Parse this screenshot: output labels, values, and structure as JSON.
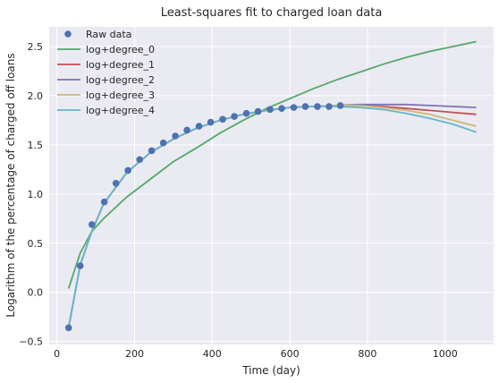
{
  "chart_data": {
    "type": "line",
    "title": "Least-squares fit to charged loan data",
    "xlabel": "Time (day)",
    "ylabel": "Logarithm of the percentage of charged off loans",
    "xlim": [
      -20,
      1125
    ],
    "ylim": [
      -0.53,
      2.7
    ],
    "xticks": [
      0,
      200,
      400,
      600,
      800,
      1000
    ],
    "yticks": [
      -0.5,
      0.0,
      0.5,
      1.0,
      1.5,
      2.0,
      2.5
    ],
    "grid": true,
    "legend_position": "top-left",
    "background": "#eaeaf2",
    "raw_data": {
      "name": "Raw data",
      "color": "#4c72b0",
      "x": [
        30,
        60,
        90,
        122,
        152,
        183,
        213,
        244,
        274,
        305,
        335,
        366,
        396,
        427,
        457,
        488,
        518,
        549,
        579,
        610,
        640,
        671,
        701,
        730
      ],
      "y": [
        -0.36,
        0.27,
        0.69,
        0.92,
        1.11,
        1.24,
        1.35,
        1.44,
        1.52,
        1.59,
        1.65,
        1.69,
        1.73,
        1.76,
        1.79,
        1.82,
        1.84,
        1.86,
        1.87,
        1.88,
        1.89,
        1.89,
        1.89,
        1.9
      ]
    },
    "series": [
      {
        "name": "log+degree_0",
        "color": "#55a868",
        "x": [
          30,
          60,
          90,
          120,
          180,
          240,
          300,
          360,
          420,
          480,
          540,
          600,
          660,
          720,
          780,
          840,
          900,
          960,
          1020,
          1080
        ],
        "y": [
          0.04,
          0.4,
          0.62,
          0.75,
          0.97,
          1.15,
          1.33,
          1.47,
          1.62,
          1.75,
          1.87,
          1.97,
          2.07,
          2.16,
          2.24,
          2.32,
          2.39,
          2.45,
          2.5,
          2.55
        ]
      },
      {
        "name": "log+degree_1",
        "color": "#c44e52",
        "x": [
          30,
          60,
          90,
          120,
          180,
          240,
          300,
          360,
          420,
          480,
          540,
          600,
          660,
          720,
          780,
          840,
          900,
          960,
          1020,
          1080
        ],
        "y": [
          -0.36,
          0.28,
          0.62,
          0.9,
          1.22,
          1.42,
          1.56,
          1.67,
          1.75,
          1.81,
          1.85,
          1.88,
          1.89,
          1.9,
          1.9,
          1.89,
          1.87,
          1.85,
          1.83,
          1.81
        ]
      },
      {
        "name": "log+degree_2",
        "color": "#8172b2",
        "x": [
          30,
          60,
          90,
          120,
          180,
          240,
          300,
          360,
          420,
          480,
          540,
          600,
          660,
          720,
          780,
          840,
          900,
          960,
          1020,
          1080
        ],
        "y": [
          -0.36,
          0.28,
          0.62,
          0.9,
          1.22,
          1.42,
          1.56,
          1.67,
          1.75,
          1.81,
          1.85,
          1.88,
          1.89,
          1.9,
          1.91,
          1.91,
          1.91,
          1.9,
          1.89,
          1.88
        ]
      },
      {
        "name": "log+degree_3",
        "color": "#ccb974",
        "x": [
          30,
          60,
          90,
          120,
          180,
          240,
          300,
          360,
          420,
          480,
          540,
          600,
          660,
          720,
          780,
          840,
          900,
          960,
          1020,
          1080
        ],
        "y": [
          -0.36,
          0.28,
          0.62,
          0.9,
          1.22,
          1.42,
          1.56,
          1.67,
          1.75,
          1.81,
          1.85,
          1.88,
          1.89,
          1.9,
          1.9,
          1.88,
          1.85,
          1.81,
          1.75,
          1.69
        ]
      },
      {
        "name": "log+degree_4",
        "color": "#64b5cd",
        "x": [
          30,
          60,
          90,
          120,
          180,
          240,
          300,
          360,
          420,
          480,
          540,
          600,
          660,
          720,
          780,
          840,
          900,
          960,
          1020,
          1080
        ],
        "y": [
          -0.36,
          0.28,
          0.62,
          0.9,
          1.22,
          1.42,
          1.56,
          1.67,
          1.75,
          1.81,
          1.85,
          1.88,
          1.89,
          1.89,
          1.88,
          1.86,
          1.82,
          1.77,
          1.71,
          1.63
        ]
      }
    ]
  }
}
